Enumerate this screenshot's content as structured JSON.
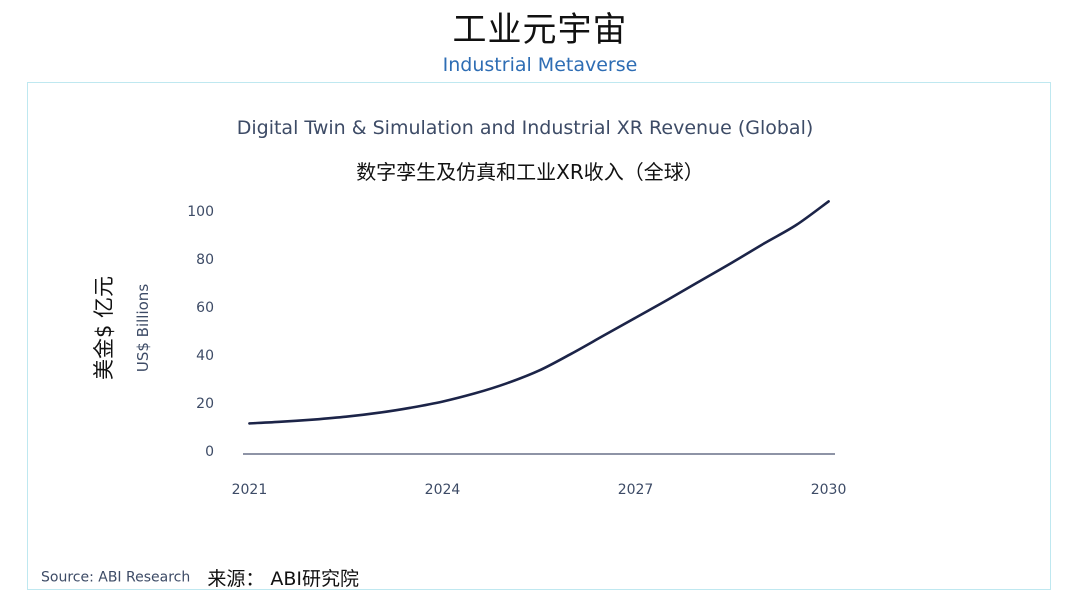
{
  "header": {
    "title": "工业元宇宙",
    "subtitle": "Industrial Metaverse"
  },
  "chart_data": {
    "type": "line",
    "title": "Digital Twin & Simulation and Industrial XR Revenue (Global)",
    "subtitle": "数字孪生及仿真和工业XR收入（全球）",
    "ylabel_cn": "美金$ 亿元",
    "ylabel": "US$ Billions",
    "xlabel": "",
    "x_ticks": [
      "2021",
      "2024",
      "2027",
      "2030"
    ],
    "y_ticks": [
      0,
      20,
      40,
      60,
      80,
      100
    ],
    "xlim": [
      2020.9,
      2030.1
    ],
    "ylim": [
      0,
      100
    ],
    "grid": false,
    "line_color": "#1c2448",
    "series": [
      {
        "x": [
          2021,
          2021.5,
          2022,
          2022.5,
          2023,
          2023.5,
          2024,
          2024.5,
          2025,
          2025.5,
          2026,
          2026.5,
          2027,
          2027.5,
          2028,
          2028.5,
          2029,
          2029.5,
          2030
        ],
        "values": [
          11.5,
          12.2,
          13.1,
          14.3,
          15.9,
          18.0,
          20.6,
          24.0,
          28.2,
          33.5,
          40.5,
          48.0,
          55.5,
          63.0,
          70.8,
          78.5,
          86.5,
          94.2,
          104.0
        ]
      }
    ]
  },
  "footer": {
    "source_en": "Source: ABI Research",
    "source_cn": "来源： ABI研究院"
  }
}
